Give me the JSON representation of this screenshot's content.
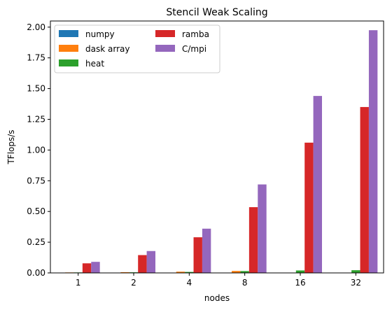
{
  "chart_data": {
    "type": "bar",
    "title": "Stencil Weak Scaling",
    "xlabel": "nodes",
    "ylabel": "TFlops/s",
    "categories": [
      "1",
      "2",
      "4",
      "8",
      "16",
      "32"
    ],
    "ylim": [
      0,
      2.05
    ],
    "yticks": [
      0.0,
      0.25,
      0.5,
      0.75,
      1.0,
      1.25,
      1.5,
      1.75,
      2.0
    ],
    "ytick_labels": [
      "0.00",
      "0.25",
      "0.50",
      "0.75",
      "1.00",
      "1.25",
      "1.50",
      "1.75",
      "2.00"
    ],
    "grid": false,
    "legend": {
      "position": "top-left",
      "columns": 2
    },
    "series": [
      {
        "name": "numpy",
        "color": "#1f77b4",
        "values": [
          0.002,
          0.002,
          0.002,
          0.002,
          0.002,
          0.002
        ]
      },
      {
        "name": "dask array",
        "color": "#ff7f0e",
        "values": [
          0.004,
          0.006,
          0.01,
          0.016,
          0.0,
          0.0
        ]
      },
      {
        "name": "heat",
        "color": "#2ca02c",
        "values": [
          0.004,
          0.005,
          0.008,
          0.015,
          0.02,
          0.022
        ]
      },
      {
        "name": "ramba",
        "color": "#d62728",
        "values": [
          0.078,
          0.145,
          0.29,
          0.535,
          1.06,
          1.35
        ]
      },
      {
        "name": "C/mpi",
        "color": "#9467bd",
        "values": [
          0.09,
          0.178,
          0.36,
          0.72,
          1.44,
          1.975
        ]
      }
    ]
  }
}
